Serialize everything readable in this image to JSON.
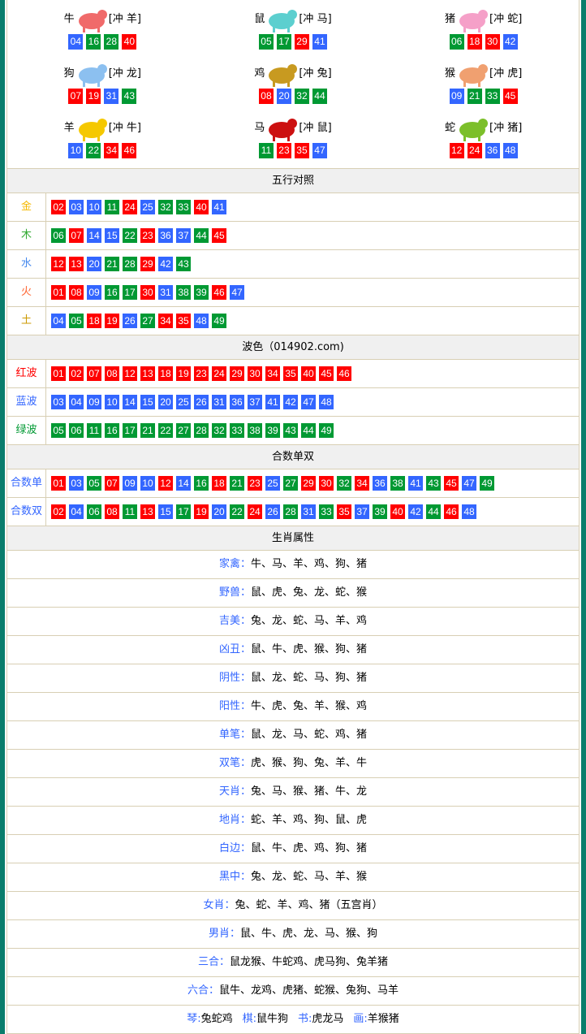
{
  "colors": {
    "red": "#ff0000",
    "blue": "#3366ff",
    "green": "#009933"
  },
  "zodiac": [
    {
      "name": "牛",
      "clash": "[冲 羊]",
      "icon": "ox-icon",
      "color": "#f06a6a",
      "nums": [
        "04",
        "16",
        "28",
        "40"
      ]
    },
    {
      "name": "鼠",
      "clash": "[冲 马]",
      "icon": "rat-icon",
      "color": "#5ccfcf",
      "nums": [
        "05",
        "17",
        "29",
        "41"
      ]
    },
    {
      "name": "猪",
      "clash": "[冲 蛇]",
      "icon": "pig-icon",
      "color": "#f5a0c8",
      "nums": [
        "06",
        "18",
        "30",
        "42"
      ]
    },
    {
      "name": "狗",
      "clash": "[冲 龙]",
      "icon": "dog-icon",
      "color": "#8cc0f0",
      "nums": [
        "07",
        "19",
        "31",
        "43"
      ]
    },
    {
      "name": "鸡",
      "clash": "[冲 兔]",
      "icon": "rooster-icon",
      "color": "#c89a20",
      "nums": [
        "08",
        "20",
        "32",
        "44"
      ]
    },
    {
      "name": "猴",
      "clash": "[冲 虎]",
      "icon": "monkey-icon",
      "color": "#f0a070",
      "nums": [
        "09",
        "21",
        "33",
        "45"
      ]
    },
    {
      "name": "羊",
      "clash": "[冲 牛]",
      "icon": "goat-icon",
      "color": "#f5c800",
      "nums": [
        "10",
        "22",
        "34",
        "46"
      ]
    },
    {
      "name": "马",
      "clash": "[冲 鼠]",
      "icon": "horse-icon",
      "color": "#cc1010",
      "nums": [
        "11",
        "23",
        "35",
        "47"
      ]
    },
    {
      "name": "蛇",
      "clash": "[冲 猪]",
      "icon": "snake-icon",
      "color": "#7cbf2a",
      "nums": [
        "12",
        "24",
        "36",
        "48"
      ]
    }
  ],
  "wuxing": {
    "title": "五行对照",
    "rows": [
      {
        "label": "金",
        "color": "#f5b800",
        "nums": [
          "02",
          "03",
          "10",
          "11",
          "24",
          "25",
          "32",
          "33",
          "40",
          "41"
        ]
      },
      {
        "label": "木",
        "color": "#33aa33",
        "nums": [
          "06",
          "07",
          "14",
          "15",
          "22",
          "23",
          "36",
          "37",
          "44",
          "45"
        ]
      },
      {
        "label": "水",
        "color": "#4488ee",
        "nums": [
          "12",
          "13",
          "20",
          "21",
          "28",
          "29",
          "42",
          "43"
        ]
      },
      {
        "label": "火",
        "color": "#ff6633",
        "nums": [
          "01",
          "08",
          "09",
          "16",
          "17",
          "30",
          "31",
          "38",
          "39",
          "46",
          "47"
        ]
      },
      {
        "label": "土",
        "color": "#cc9900",
        "nums": [
          "04",
          "05",
          "18",
          "19",
          "26",
          "27",
          "34",
          "35",
          "48",
          "49"
        ]
      }
    ]
  },
  "bose": {
    "title": "波色（014902.com)",
    "rows": [
      {
        "label": "红波",
        "color": "#ff0000",
        "nums": [
          "01",
          "02",
          "07",
          "08",
          "12",
          "13",
          "18",
          "19",
          "23",
          "24",
          "29",
          "30",
          "34",
          "35",
          "40",
          "45",
          "46"
        ]
      },
      {
        "label": "蓝波",
        "color": "#3366ff",
        "nums": [
          "03",
          "04",
          "09",
          "10",
          "14",
          "15",
          "20",
          "25",
          "26",
          "31",
          "36",
          "37",
          "41",
          "42",
          "47",
          "48"
        ]
      },
      {
        "label": "绿波",
        "color": "#009933",
        "nums": [
          "05",
          "06",
          "11",
          "16",
          "17",
          "21",
          "22",
          "27",
          "28",
          "32",
          "33",
          "38",
          "39",
          "43",
          "44",
          "49"
        ]
      }
    ]
  },
  "heshu": {
    "title": "合数单双",
    "rows": [
      {
        "label": "合数单",
        "color": "#3366ff",
        "nums": [
          "01",
          "03",
          "05",
          "07",
          "09",
          "10",
          "12",
          "14",
          "16",
          "18",
          "21",
          "23",
          "25",
          "27",
          "29",
          "30",
          "32",
          "34",
          "36",
          "38",
          "41",
          "43",
          "45",
          "47",
          "49"
        ]
      },
      {
        "label": "合数双",
        "color": "#3366ff",
        "nums": [
          "02",
          "04",
          "06",
          "08",
          "11",
          "13",
          "15",
          "17",
          "19",
          "20",
          "22",
          "24",
          "26",
          "28",
          "31",
          "33",
          "35",
          "37",
          "39",
          "40",
          "42",
          "44",
          "46",
          "48"
        ]
      }
    ]
  },
  "attrs": {
    "title": "生肖属性",
    "rows": [
      {
        "k": "家禽：",
        "v": "牛、马、羊、鸡、狗、猪"
      },
      {
        "k": "野兽：",
        "v": "鼠、虎、兔、龙、蛇、猴"
      },
      {
        "k": "吉美：",
        "v": "兔、龙、蛇、马、羊、鸡"
      },
      {
        "k": "凶丑：",
        "v": "鼠、牛、虎、猴、狗、猪"
      },
      {
        "k": "阴性：",
        "v": "鼠、龙、蛇、马、狗、猪"
      },
      {
        "k": "阳性：",
        "v": "牛、虎、兔、羊、猴、鸡"
      },
      {
        "k": "单笔：",
        "v": "鼠、龙、马、蛇、鸡、猪"
      },
      {
        "k": "双笔：",
        "v": "虎、猴、狗、兔、羊、牛"
      },
      {
        "k": "天肖：",
        "v": "兔、马、猴、猪、牛、龙"
      },
      {
        "k": "地肖：",
        "v": "蛇、羊、鸡、狗、鼠、虎"
      },
      {
        "k": "白边：",
        "v": "鼠、牛、虎、鸡、狗、猪"
      },
      {
        "k": "黑中：",
        "v": "兔、龙、蛇、马、羊、猴"
      },
      {
        "k": "女肖：",
        "v": "兔、蛇、羊、鸡、猪（五宫肖）"
      },
      {
        "k": "男肖：",
        "v": "鼠、牛、虎、龙、马、猴、狗"
      },
      {
        "k": "三合：",
        "v": "鼠龙猴、牛蛇鸡、虎马狗、兔羊猪"
      },
      {
        "k": "六合：",
        "v": "鼠牛、龙鸡、虎猪、蛇猴、兔狗、马羊"
      }
    ],
    "last": [
      {
        "k": "琴:",
        "v": "兔蛇鸡"
      },
      {
        "k": "棋:",
        "v": "鼠牛狗"
      },
      {
        "k": "书:",
        "v": "虎龙马"
      },
      {
        "k": "画:",
        "v": "羊猴猪"
      }
    ]
  }
}
